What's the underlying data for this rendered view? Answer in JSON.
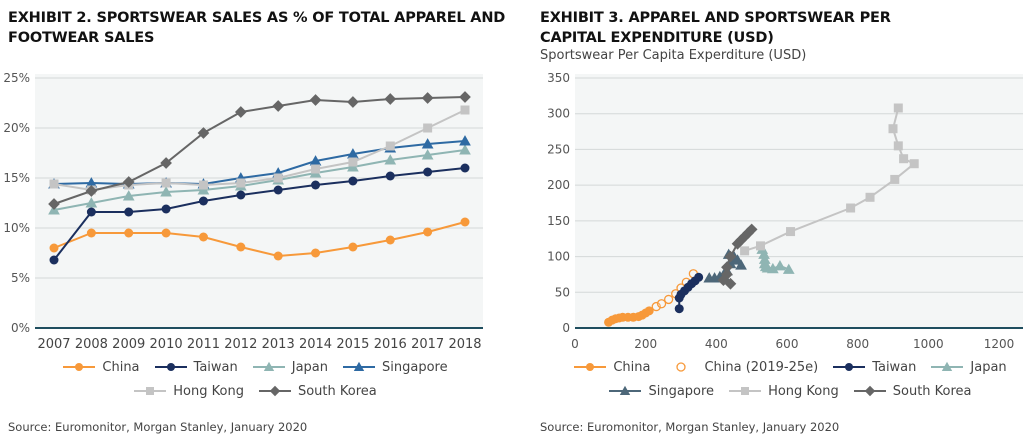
{
  "chart_data": [
    {
      "type": "line",
      "title": "EXHIBIT 2. SPORTSWEAR SALES AS % OF TOTAL APPAREL AND FOOTWEAR SALES",
      "xlabel": "",
      "ylabel": "",
      "categories": [
        "2007",
        "2008",
        "2009",
        "2010",
        "2011",
        "2012",
        "2013",
        "2014",
        "2015",
        "2016",
        "2017",
        "2018"
      ],
      "ylim": [
        0,
        25
      ],
      "yticks": [
        "0%",
        "5%",
        "10%",
        "15%",
        "20%",
        "25%"
      ],
      "grid": true,
      "legend": "bottom",
      "series": [
        {
          "name": "China",
          "color": "#f7993a",
          "marker": "circle",
          "values": [
            8.0,
            9.5,
            9.5,
            9.5,
            9.1,
            8.1,
            7.2,
            7.5,
            8.1,
            8.8,
            9.6,
            10.6
          ]
        },
        {
          "name": "Taiwan",
          "color": "#1b2f5e",
          "marker": "circle",
          "values": [
            6.8,
            11.6,
            11.6,
            11.9,
            12.7,
            13.3,
            13.8,
            14.3,
            14.7,
            15.2,
            15.6,
            16.0
          ]
        },
        {
          "name": "Japan",
          "color": "#8fb5b3",
          "marker": "triangle",
          "values": [
            11.8,
            12.5,
            13.2,
            13.6,
            13.8,
            14.2,
            14.8,
            15.5,
            16.1,
            16.8,
            17.3,
            17.8
          ]
        },
        {
          "name": "Singapore",
          "color": "#2e6aa3",
          "marker": "triangle",
          "values": [
            14.4,
            14.5,
            14.4,
            14.5,
            14.4,
            15.0,
            15.5,
            16.7,
            17.4,
            18.0,
            18.4,
            18.7
          ]
        },
        {
          "name": "Hong Kong",
          "color": "#c4c4c4",
          "marker": "square",
          "values": [
            14.4,
            13.8,
            14.3,
            14.5,
            14.3,
            14.5,
            15.0,
            15.9,
            16.6,
            18.2,
            20.0,
            21.8
          ]
        },
        {
          "name": "South Korea",
          "color": "#666666",
          "marker": "diamond",
          "values": [
            12.4,
            13.7,
            14.6,
            16.5,
            19.5,
            21.6,
            22.2,
            22.8,
            22.6,
            22.9,
            23.0,
            23.1
          ]
        }
      ],
      "source": "Source: Euromonitor, Morgan Stanley, January 2020"
    },
    {
      "type": "scatter",
      "title": "EXHIBIT 3. APPAREL AND SPORTSWEAR PER CAPITAL EXPENDITURE (USD)",
      "ylabel": "Sportswear Per Capita Experditure (USD)",
      "xlabel": "",
      "xlim": [
        0,
        1200
      ],
      "ylim": [
        0,
        350
      ],
      "xticks": [
        0,
        200,
        400,
        600,
        800,
        1000,
        1200
      ],
      "yticks": [
        0,
        50,
        100,
        150,
        200,
        250,
        300,
        350
      ],
      "grid": true,
      "legend": "bottom",
      "series": [
        {
          "name": "China",
          "color": "#f7993a",
          "marker": "circle",
          "points": [
            [
              95,
              8
            ],
            [
              105,
              11
            ],
            [
              115,
              13
            ],
            [
              125,
              14
            ],
            [
              135,
              15
            ],
            [
              150,
              15
            ],
            [
              165,
              15
            ],
            [
              180,
              16
            ],
            [
              190,
              18
            ],
            [
              200,
              21
            ],
            [
              210,
              24
            ]
          ]
        },
        {
          "name": "China (2019-25e)",
          "color": "#f7993a",
          "marker": "open-circle",
          "points": [
            [
              230,
              30
            ],
            [
              245,
              34
            ],
            [
              265,
              40
            ],
            [
              285,
              48
            ],
            [
              300,
              56
            ],
            [
              315,
              64
            ],
            [
              335,
              76
            ]
          ]
        },
        {
          "name": "Taiwan",
          "color": "#1b2f5e",
          "marker": "circle",
          "points": [
            [
              295,
              27
            ],
            [
              295,
              42
            ],
            [
              300,
              47
            ],
            [
              310,
              52
            ],
            [
              320,
              57
            ],
            [
              330,
              62
            ],
            [
              340,
              66
            ],
            [
              350,
              71
            ]
          ]
        },
        {
          "name": "Japan",
          "color": "#8fb5b3",
          "marker": "triangle",
          "points": [
            [
              530,
              110
            ],
            [
              535,
              103
            ],
            [
              537,
              96
            ],
            [
              537,
              90
            ],
            [
              540,
              86
            ],
            [
              545,
              84
            ],
            [
              560,
              83
            ],
            [
              580,
              87
            ],
            [
              605,
              82
            ]
          ]
        },
        {
          "name": "Singapore",
          "color": "#4d6779",
          "marker": "triangle",
          "points": [
            [
              380,
              70
            ],
            [
              395,
              70
            ],
            [
              410,
              72
            ],
            [
              420,
              74
            ],
            [
              430,
              80
            ],
            [
              440,
              90
            ],
            [
              445,
              97
            ],
            [
              435,
              103
            ],
            [
              450,
              100
            ],
            [
              460,
              95
            ],
            [
              470,
              88
            ]
          ]
        },
        {
          "name": "Hong Kong",
          "color": "#c4c4c4",
          "marker": "square",
          "points": [
            [
              480,
              108
            ],
            [
              525,
              115
            ],
            [
              610,
              135
            ],
            [
              780,
              168
            ],
            [
              835,
              183
            ],
            [
              905,
              208
            ],
            [
              960,
              230
            ],
            [
              930,
              237
            ],
            [
              915,
              255
            ],
            [
              900,
              279
            ],
            [
              915,
              308
            ]
          ]
        },
        {
          "name": "South Korea",
          "color": "#666666",
          "marker": "diamond",
          "points": [
            [
              440,
              62
            ],
            [
              420,
              67
            ],
            [
              430,
              75
            ],
            [
              430,
              85
            ],
            [
              440,
              100
            ],
            [
              460,
              118
            ],
            [
              470,
              123
            ],
            [
              480,
              128
            ],
            [
              490,
              133
            ],
            [
              500,
              138
            ]
          ]
        }
      ],
      "source": "Source: Euromonitor, Morgan Stanley, January 2020"
    }
  ]
}
